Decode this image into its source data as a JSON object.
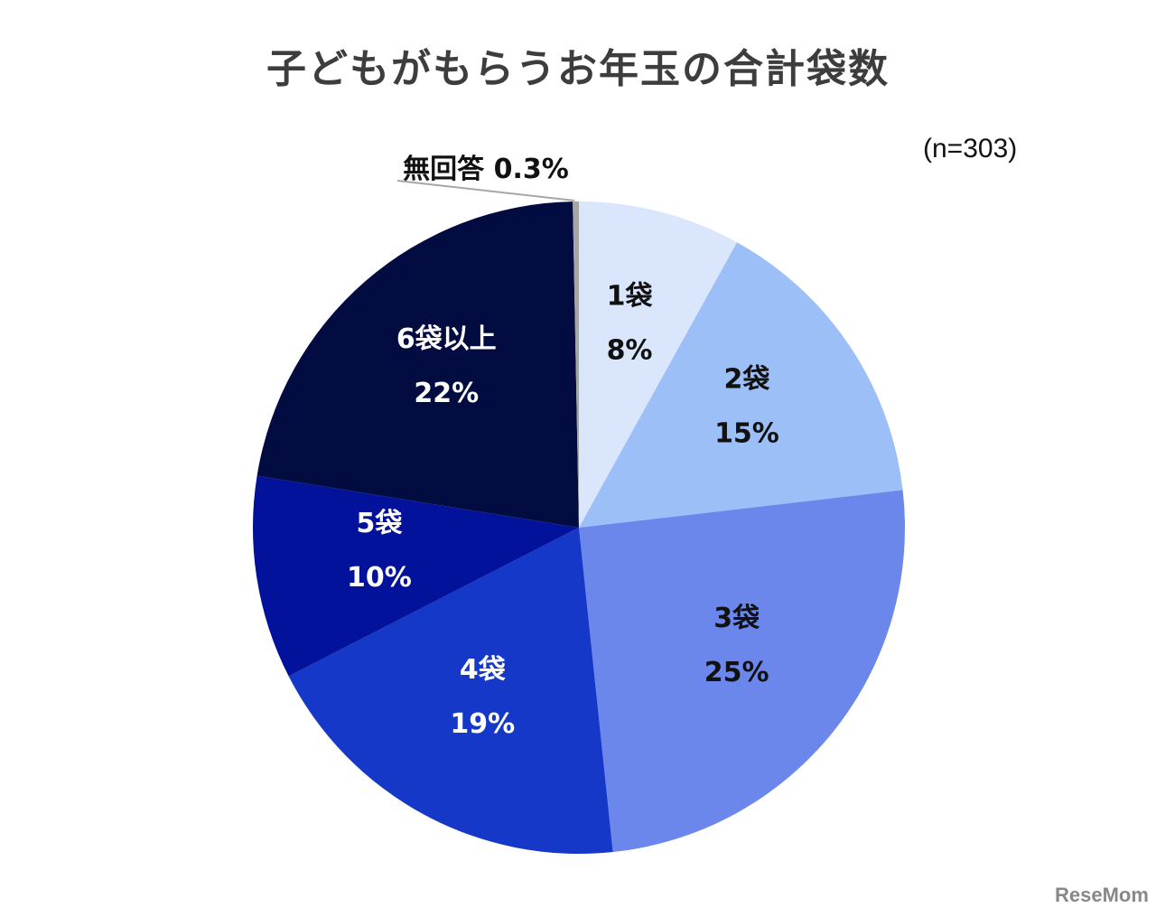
{
  "title": "子どもがもらうお年玉の合計袋数",
  "sample": "(n=303)",
  "logo": "ReseMom",
  "chart_data": {
    "type": "pie",
    "title": "子どもがもらうお年玉の合計袋数",
    "categories": [
      "1袋",
      "2袋",
      "3袋",
      "4袋",
      "5袋",
      "6袋以上",
      "無回答"
    ],
    "values": [
      8,
      15,
      25,
      19,
      10,
      22,
      0.3
    ],
    "colors": [
      "#d9e6fb",
      "#9dbff7",
      "#6b87ec",
      "#1538c9",
      "#02129a",
      "#020c40",
      "#a6a6a6"
    ],
    "labels": [
      "8%",
      "15%",
      "25%",
      "19%",
      "10%",
      "22%",
      "0.3%"
    ],
    "legend": "none",
    "note": "(n=303)"
  }
}
